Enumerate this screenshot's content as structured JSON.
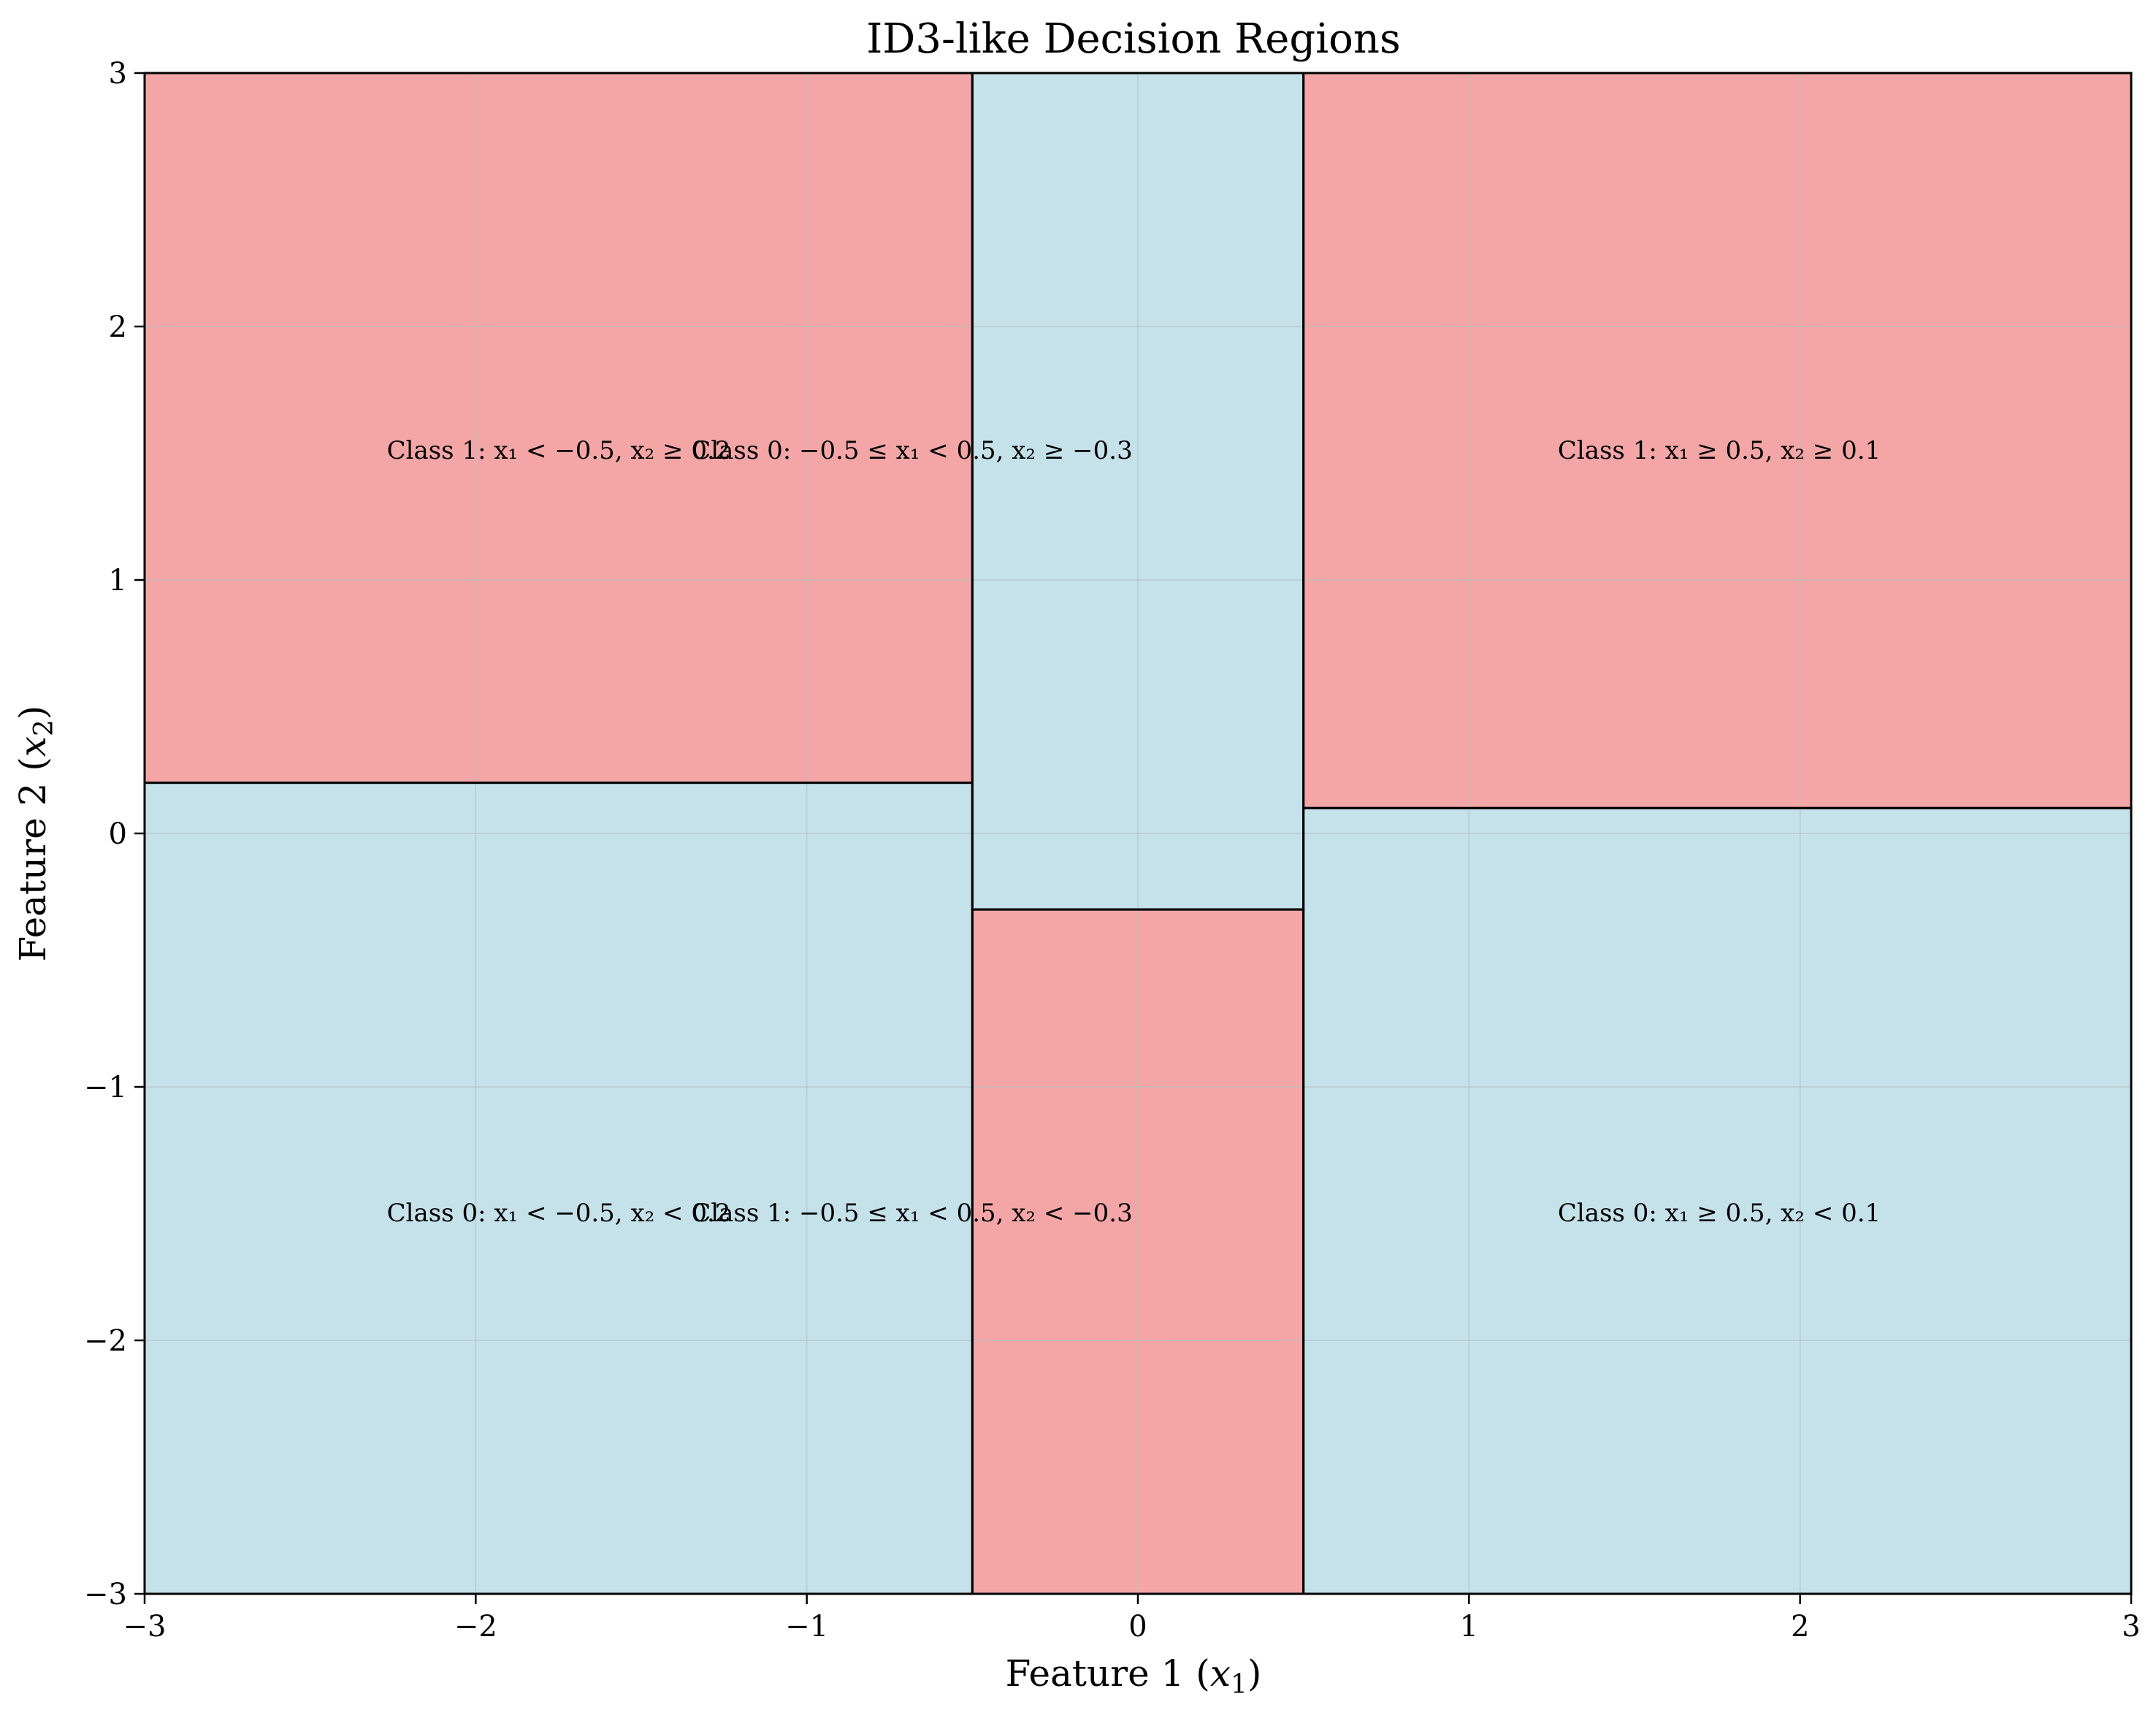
{
  "chart_data": {
    "type": "heatmap",
    "title": "ID3-like Decision Regions",
    "xlabel": {
      "text": "Feature 1 (",
      "var": "x",
      "sub": "1",
      "close": ")"
    },
    "ylabel": {
      "text": "Feature 2 (",
      "var": "x",
      "sub": "2",
      "close": ")"
    },
    "xlim": [
      -3,
      3
    ],
    "ylim": [
      -3,
      3
    ],
    "x_ticks": [
      -3,
      -2,
      -1,
      0,
      1,
      2,
      3
    ],
    "y_ticks": [
      -3,
      -2,
      -1,
      0,
      1,
      2,
      3
    ],
    "x_tick_labels": [
      "−3",
      "−2",
      "−1",
      "0",
      "1",
      "2",
      "3"
    ],
    "y_tick_labels": [
      "−3",
      "−2",
      "−1",
      "0",
      "1",
      "2",
      "3"
    ],
    "grid": true,
    "colors": {
      "class_0": "#c5e2eb",
      "class_1": "#f4a6a6"
    },
    "regions": [
      {
        "class": 1,
        "x": [
          -3,
          -0.5
        ],
        "y": [
          0.2,
          3
        ],
        "label": "Class 1: x₁ < −0.5, x₂ ≥ 0.2"
      },
      {
        "class": 0,
        "x": [
          -3,
          -0.5
        ],
        "y": [
          -3,
          0.2
        ],
        "label": "Class 0: x₁ < −0.5, x₂ < 0.2"
      },
      {
        "class": 0,
        "x": [
          -0.5,
          0.5
        ],
        "y": [
          -0.3,
          3
        ],
        "label": "Class 0: −0.5 ≤ x₁ < 0.5, x₂ ≥ −0.3"
      },
      {
        "class": 1,
        "x": [
          -0.5,
          0.5
        ],
        "y": [
          -3,
          -0.3
        ],
        "label": "Class 1: −0.5 ≤ x₁ < 0.5, x₂ < −0.3"
      },
      {
        "class": 1,
        "x": [
          0.5,
          3
        ],
        "y": [
          0.1,
          3
        ],
        "label": "Class 1: x₁ ≥ 0.5, x₂ ≥ 0.1"
      },
      {
        "class": 0,
        "x": [
          0.5,
          3
        ],
        "y": [
          -3,
          0.1
        ],
        "label": "Class 0: x₁ ≥ 0.5, x₂ < 0.1"
      }
    ]
  }
}
